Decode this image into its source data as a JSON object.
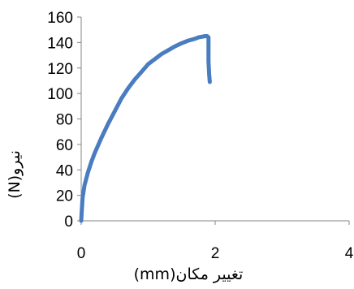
{
  "chart_data": {
    "type": "line",
    "title": "",
    "xlabel": "(mm)تغییر مکان",
    "ylabel": "(N)نیرو",
    "xlim": [
      0,
      4
    ],
    "ylim": [
      0,
      160
    ],
    "x_ticks": [
      "0",
      "2",
      "4"
    ],
    "y_ticks": [
      "0",
      "20",
      "40",
      "60",
      "80",
      "100",
      "120",
      "140",
      "160"
    ],
    "grid": false,
    "legend": "none",
    "series_color": "#4a7cc0",
    "series": [
      {
        "x": [
          0,
          0.02,
          0.05,
          0.1,
          0.15,
          0.2,
          0.3,
          0.4,
          0.5,
          0.6,
          0.7,
          0.8,
          0.9,
          1.0,
          1.1,
          1.2,
          1.3,
          1.4,
          1.5,
          1.6,
          1.7,
          1.75,
          1.8,
          1.85,
          1.88,
          1.9,
          1.9,
          1.91,
          1.92
        ],
        "y": [
          0,
          18,
          28,
          38,
          46,
          53,
          65,
          76,
          86,
          96,
          104,
          111,
          117,
          123,
          127,
          131,
          134,
          137,
          139.5,
          141.5,
          143,
          144,
          144.5,
          145,
          145,
          144,
          125,
          115,
          109
        ]
      }
    ]
  }
}
